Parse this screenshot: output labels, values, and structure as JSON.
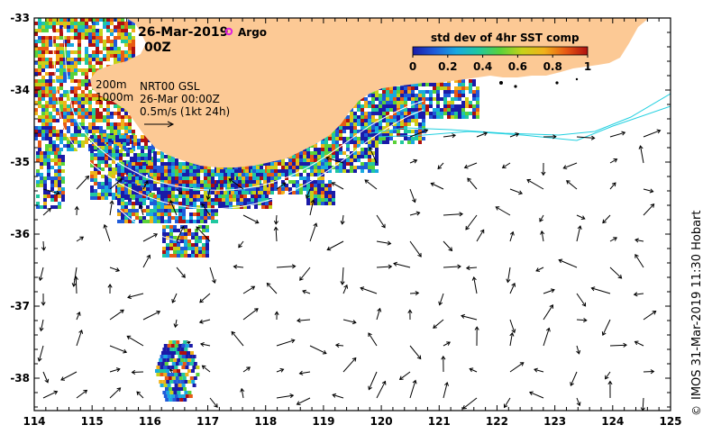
{
  "map": {
    "date_label": "26-Mar-2019",
    "time_label": "00Z",
    "argo_label": "Argo",
    "colorbar": {
      "title": "std dev of 4hr SST comp",
      "ticks": [
        "0",
        "0.2",
        "0.4",
        "0.6",
        "0.8",
        "1"
      ],
      "stops": [
        "#1a1aa8",
        "#1f5bd9",
        "#18a9e0",
        "#20c8a0",
        "#5ad23a",
        "#c6d21a",
        "#f0b21a",
        "#e85a14",
        "#b01010"
      ]
    },
    "contours_legend": {
      "c200": "200m",
      "c1000": "1000m"
    },
    "currents_legend": {
      "line1": "NRT00 GSL",
      "line2": "26-Mar 00:00Z",
      "line3": "0.5m/s (1kt 24h)"
    },
    "x_ticks": [
      "114",
      "115",
      "116",
      "117",
      "118",
      "119",
      "120",
      "121",
      "122",
      "123",
      "124",
      "125"
    ],
    "y_ticks": [
      "-33",
      "-34",
      "-35",
      "-36",
      "-37",
      "-38"
    ],
    "credit": "IMOS 31-Mar-2019 11:30 Hobart",
    "copyright_symbol": "©",
    "colors": {
      "land": "#fcc995",
      "ocean": "#ffffff",
      "contour": "#ffffff",
      "track": "#22d0e0"
    }
  }
}
